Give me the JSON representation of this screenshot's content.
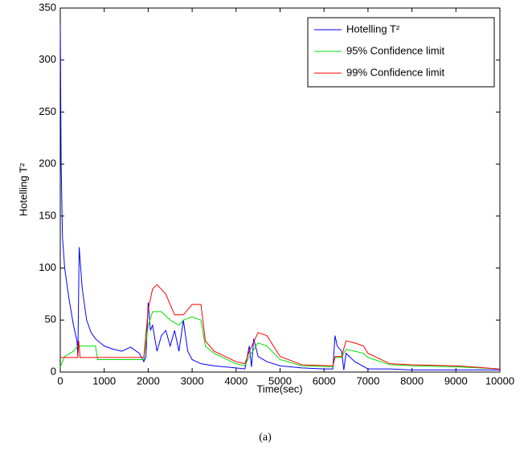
{
  "chart_data": {
    "type": "line",
    "xlabel": "Time(sec)",
    "ylabel": "Hotelling T²",
    "caption": "(a)",
    "xlim": [
      0,
      10000
    ],
    "ylim": [
      0,
      350
    ],
    "xticks": [
      0,
      1000,
      2000,
      3000,
      4000,
      5000,
      6000,
      7000,
      8000,
      9000,
      10000
    ],
    "yticks": [
      0,
      50,
      100,
      150,
      200,
      250,
      300,
      350
    ],
    "grid": false,
    "legend": "upper right",
    "series": [
      {
        "name": "Hotelling T²",
        "color": "#0000ff",
        "x": [
          0,
          20,
          50,
          100,
          200,
          300,
          380,
          400,
          430,
          500,
          600,
          700,
          800,
          1000,
          1200,
          1400,
          1600,
          1800,
          1900,
          1950,
          2000,
          2050,
          2100,
          2200,
          2300,
          2400,
          2500,
          2600,
          2700,
          2800,
          2900,
          3000,
          3200,
          3500,
          4000,
          4200,
          4300,
          4350,
          4400,
          4500,
          4700,
          5000,
          5500,
          6000,
          6200,
          6250,
          6300,
          6400,
          6450,
          6500,
          6700,
          7000,
          7500,
          8000,
          9000,
          10000
        ],
        "values": [
          335,
          200,
          130,
          100,
          70,
          45,
          30,
          15,
          120,
          80,
          50,
          38,
          32,
          25,
          22,
          20,
          24,
          18,
          10,
          15,
          67,
          40,
          45,
          20,
          35,
          40,
          25,
          40,
          20,
          50,
          20,
          12,
          8,
          6,
          4,
          3,
          25,
          5,
          32,
          15,
          10,
          6,
          4,
          3,
          3,
          35,
          25,
          20,
          2,
          18,
          10,
          3,
          3,
          2,
          2,
          2
        ]
      },
      {
        "name": "95% Confidence limit",
        "color": "#00e000",
        "x": [
          0,
          100,
          300,
          400,
          800,
          850,
          1900,
          2000,
          2100,
          2300,
          2500,
          2700,
          2800,
          3000,
          3200,
          3300,
          3500,
          4000,
          4200,
          4300,
          4500,
          4700,
          5000,
          5500,
          6200,
          6250,
          6400,
          6500,
          6700,
          6900,
          7000,
          7500,
          8000,
          9000,
          10000
        ],
        "values": [
          5,
          15,
          20,
          25,
          25,
          12,
          12,
          45,
          58,
          58,
          50,
          45,
          50,
          53,
          50,
          25,
          18,
          8,
          6,
          15,
          28,
          25,
          12,
          6,
          5,
          14,
          14,
          22,
          20,
          18,
          14,
          7,
          6,
          5,
          3
        ]
      },
      {
        "name": "99% Confidence limit",
        "color": "#ff0000",
        "x": [
          0,
          400,
          420,
          450,
          1900,
          2000,
          2100,
          2200,
          2400,
          2600,
          2800,
          3000,
          3200,
          3300,
          3500,
          4000,
          4200,
          4300,
          4500,
          4700,
          5000,
          5500,
          6200,
          6250,
          6400,
          6500,
          6700,
          6900,
          7000,
          7500,
          8000,
          9000,
          10000
        ],
        "values": [
          14,
          14,
          30,
          14,
          14,
          60,
          80,
          84,
          75,
          55,
          55,
          65,
          65,
          30,
          20,
          10,
          8,
          20,
          38,
          35,
          15,
          7,
          6,
          15,
          15,
          30,
          28,
          25,
          18,
          8,
          7,
          6,
          3
        ]
      }
    ]
  }
}
